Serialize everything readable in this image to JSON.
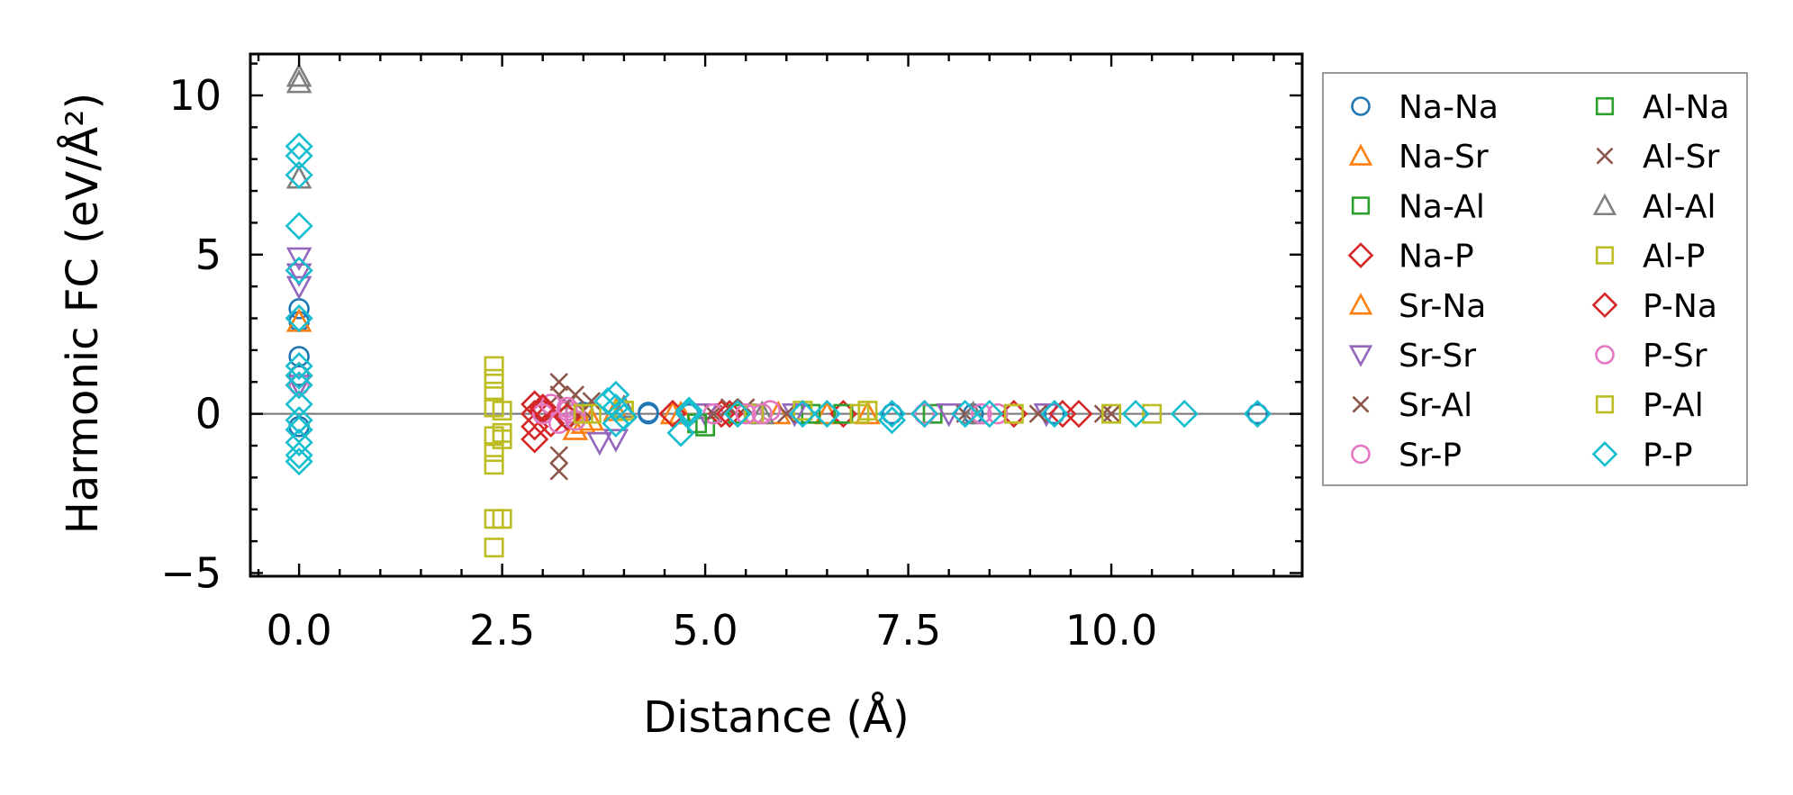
{
  "chart_data": {
    "type": "scatter",
    "title": "",
    "xlabel": "Distance (Å)",
    "ylabel": "Harmonic FC (eV/Å²)",
    "xlim": [
      -0.6,
      12.35
    ],
    "ylim": [
      -5.1,
      11.3
    ],
    "xticks": [
      0.0,
      2.5,
      5.0,
      7.5,
      10.0
    ],
    "xtick_labels": [
      "0.0",
      "2.5",
      "5.0",
      "7.5",
      "10.0"
    ],
    "yticks": [
      -5,
      0,
      5,
      10
    ],
    "ytick_labels": [
      "−5",
      "0",
      "5",
      "10"
    ],
    "grid": false,
    "reference_line_y": 0,
    "legend_position": "outside-right",
    "series": [
      {
        "name": "Na-Na",
        "marker": "circle",
        "color": "#1f77b4",
        "points": [
          [
            0,
            3.3
          ],
          [
            0,
            2.9
          ],
          [
            0,
            1.8
          ],
          [
            0,
            1.2
          ],
          [
            0,
            -0.4
          ],
          [
            3.0,
            0.1
          ],
          [
            3.3,
            -0.1
          ],
          [
            3.5,
            0.05
          ],
          [
            4.3,
            0.05
          ],
          [
            4.3,
            0.0
          ],
          [
            4.8,
            0.0
          ],
          [
            5.6,
            0.0
          ],
          [
            6.2,
            0.0
          ],
          [
            7.3,
            0.0
          ],
          [
            8.3,
            0.0
          ],
          [
            9.3,
            0.0
          ],
          [
            11.8,
            0.0
          ]
        ]
      },
      {
        "name": "Na-Sr",
        "marker": "triangle-up",
        "color": "#ff7f0e",
        "points": [
          [
            0,
            2.9
          ],
          [
            3.4,
            -0.5
          ],
          [
            3.6,
            -0.2
          ],
          [
            3.9,
            0.1
          ],
          [
            4.7,
            0.0
          ],
          [
            6.5,
            0.0
          ]
        ]
      },
      {
        "name": "Na-Al",
        "marker": "square",
        "color": "#2ca02c",
        "points": [
          [
            3.4,
            0.0
          ],
          [
            5.0,
            -0.4
          ],
          [
            5.4,
            0.0
          ],
          [
            6.3,
            0.0
          ],
          [
            7.8,
            0.0
          ]
        ]
      },
      {
        "name": "Na-P",
        "marker": "diamond",
        "color": "#d62728",
        "points": [
          [
            0,
            1.2
          ],
          [
            2.9,
            -0.8
          ],
          [
            2.9,
            -0.4
          ],
          [
            2.9,
            0.0
          ],
          [
            2.9,
            0.3
          ],
          [
            3.0,
            0.1
          ],
          [
            3.1,
            -0.3
          ],
          [
            4.6,
            0.0
          ],
          [
            5.2,
            0.0
          ],
          [
            6.7,
            0.0
          ],
          [
            8.8,
            0.0
          ],
          [
            9.6,
            0.0
          ]
        ]
      },
      {
        "name": "Sr-Na",
        "marker": "triangle-up",
        "color": "#ff7f0e",
        "points": [
          [
            3.5,
            -0.3
          ],
          [
            4.6,
            0.0
          ],
          [
            5.9,
            0.0
          ],
          [
            7.0,
            0.0
          ]
        ]
      },
      {
        "name": "Sr-Sr",
        "marker": "triangle-down",
        "color": "#9467bd",
        "points": [
          [
            0,
            4.9
          ],
          [
            0,
            4.4
          ],
          [
            0,
            4.0
          ],
          [
            0,
            0.9
          ],
          [
            3.7,
            -0.9
          ],
          [
            3.9,
            -0.8
          ],
          [
            5.0,
            0.0
          ],
          [
            6.1,
            0.0
          ],
          [
            8.0,
            0.0
          ],
          [
            9.2,
            0.0
          ]
        ]
      },
      {
        "name": "Sr-Al",
        "marker": "x",
        "color": "#8c564b",
        "points": [
          [
            3.2,
            1.0
          ],
          [
            3.2,
            0.6
          ],
          [
            3.2,
            -1.3
          ],
          [
            3.2,
            -1.8
          ],
          [
            3.3,
            0.3
          ],
          [
            3.5,
            0.1
          ],
          [
            5.1,
            0.0
          ],
          [
            5.5,
            0.2
          ],
          [
            6.0,
            0.0
          ],
          [
            8.2,
            0.0
          ],
          [
            10.0,
            0.0
          ]
        ]
      },
      {
        "name": "Sr-P",
        "marker": "circle",
        "color": "#e377c2",
        "points": [
          [
            0,
            0.9
          ],
          [
            3.0,
            0.0
          ],
          [
            3.1,
            0.3
          ],
          [
            3.2,
            -0.3
          ],
          [
            3.3,
            0.1
          ],
          [
            3.4,
            0.0
          ],
          [
            5.1,
            0.0
          ],
          [
            5.6,
            0.0
          ],
          [
            5.8,
            0.1
          ],
          [
            7.7,
            0.0
          ],
          [
            8.6,
            0.0
          ]
        ]
      },
      {
        "name": "Al-Na",
        "marker": "square",
        "color": "#2ca02c",
        "points": [
          [
            4.9,
            -0.3
          ],
          [
            5.6,
            0.0
          ],
          [
            6.7,
            0.0
          ]
        ]
      },
      {
        "name": "Al-Sr",
        "marker": "x",
        "color": "#8c564b",
        "points": [
          [
            3.4,
            0.6
          ],
          [
            3.6,
            0.4
          ],
          [
            5.3,
            0.2
          ],
          [
            9.1,
            0.0
          ],
          [
            9.9,
            0.0
          ]
        ]
      },
      {
        "name": "Al-Al",
        "marker": "triangle-up",
        "color": "#7f7f7f",
        "points": [
          [
            0,
            10.6
          ],
          [
            0,
            10.4
          ],
          [
            0,
            7.4
          ],
          [
            4.0,
            0.2
          ],
          [
            5.7,
            0.0
          ],
          [
            8.3,
            0.0
          ]
        ]
      },
      {
        "name": "Al-P",
        "marker": "square",
        "color": "#bcbd22",
        "points": [
          [
            2.4,
            1.5
          ],
          [
            2.4,
            1.1
          ],
          [
            2.4,
            0.7
          ],
          [
            2.4,
            0.2
          ],
          [
            2.4,
            -0.7
          ],
          [
            2.4,
            -1.2
          ],
          [
            2.4,
            -1.6
          ],
          [
            2.4,
            -3.3
          ],
          [
            2.4,
            -4.2
          ],
          [
            2.5,
            -0.6
          ],
          [
            2.5,
            0.1
          ],
          [
            2.5,
            -3.3
          ],
          [
            3.6,
            0.0
          ],
          [
            4.0,
            0.1
          ],
          [
            5.6,
            0.0
          ],
          [
            6.2,
            0.1
          ],
          [
            7.0,
            0.1
          ],
          [
            8.8,
            0.0
          ],
          [
            10.5,
            0.0
          ]
        ]
      },
      {
        "name": "P-Na",
        "marker": "diamond",
        "color": "#d62728",
        "points": [
          [
            3.0,
            0.2
          ],
          [
            3.3,
            -0.1
          ],
          [
            4.6,
            0.0
          ],
          [
            5.3,
            0.0
          ],
          [
            7.7,
            0.0
          ],
          [
            9.4,
            0.0
          ]
        ]
      },
      {
        "name": "P-Sr",
        "marker": "circle",
        "color": "#e377c2",
        "points": [
          [
            3.3,
            0.2
          ],
          [
            3.4,
            -0.2
          ],
          [
            5.5,
            0.0
          ],
          [
            5.7,
            0.0
          ],
          [
            7.7,
            0.0
          ],
          [
            8.4,
            0.0
          ]
        ]
      },
      {
        "name": "P-Al",
        "marker": "square",
        "color": "#bcbd22",
        "points": [
          [
            2.5,
            -0.8
          ],
          [
            3.5,
            0.0
          ],
          [
            4.0,
            0.1
          ],
          [
            6.9,
            0.0
          ],
          [
            10.0,
            0.0
          ]
        ]
      },
      {
        "name": "P-P",
        "marker": "diamond",
        "color": "#17becf",
        "points": [
          [
            0,
            8.4
          ],
          [
            0,
            8.1
          ],
          [
            0,
            7.5
          ],
          [
            0,
            5.9
          ],
          [
            0,
            4.5
          ],
          [
            0,
            3.0
          ],
          [
            0,
            1.5
          ],
          [
            0,
            1.2
          ],
          [
            0,
            0.9
          ],
          [
            0,
            0.3
          ],
          [
            0,
            -0.2
          ],
          [
            0,
            -0.5
          ],
          [
            0,
            -0.9
          ],
          [
            0,
            -1.3
          ],
          [
            0,
            -1.5
          ],
          [
            3.8,
            0.4
          ],
          [
            3.9,
            0.6
          ],
          [
            3.9,
            0.2
          ],
          [
            4.0,
            -0.1
          ],
          [
            3.9,
            -0.3
          ],
          [
            4.8,
            0.1
          ],
          [
            4.8,
            0.0
          ],
          [
            4.7,
            -0.6
          ],
          [
            5.4,
            0.0
          ],
          [
            6.2,
            0.0
          ],
          [
            6.5,
            0.0
          ],
          [
            7.3,
            -0.2
          ],
          [
            7.3,
            0.0
          ],
          [
            7.7,
            0.0
          ],
          [
            8.2,
            0.0
          ],
          [
            8.5,
            0.0
          ],
          [
            9.3,
            0.0
          ],
          [
            10.3,
            0.0
          ],
          [
            10.9,
            0.0
          ],
          [
            11.8,
            0.0
          ]
        ]
      }
    ]
  }
}
